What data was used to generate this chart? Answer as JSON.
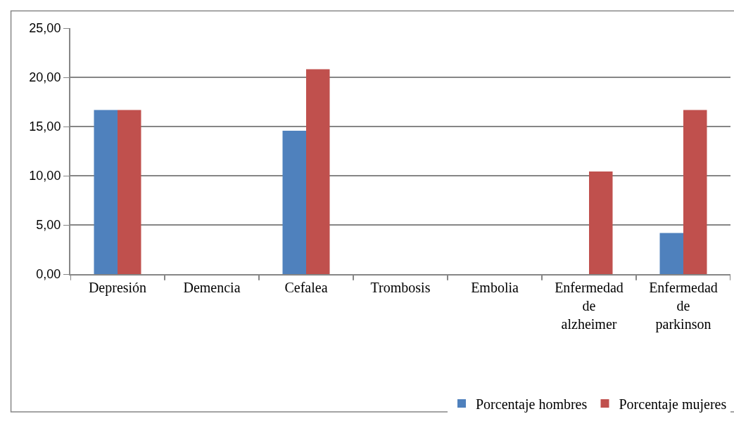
{
  "chart_data": {
    "type": "bar",
    "categories": [
      "Depresión",
      "Demencia",
      "Cefalea",
      "Trombosis",
      "Embolia",
      "Enfermedad de alzheimer",
      "Enfermedad de parkinson"
    ],
    "series": [
      {
        "name": "Porcentaje hombres",
        "color": "#4f81bd",
        "values": [
          16.67,
          0,
          14.58,
          0,
          0,
          0,
          4.17
        ]
      },
      {
        "name": "Porcentaje mujeres",
        "color": "#c0504d",
        "values": [
          16.67,
          0,
          20.83,
          0,
          0,
          10.42,
          16.67
        ]
      }
    ],
    "ylim": [
      0,
      25
    ],
    "yticks": [
      {
        "value": 0,
        "label": "0,00"
      },
      {
        "value": 5,
        "label": "5,00"
      },
      {
        "value": 10,
        "label": "10,00"
      },
      {
        "value": 15,
        "label": "15,00"
      },
      {
        "value": 20,
        "label": "20,00"
      },
      {
        "value": 25,
        "label": "25,00"
      }
    ],
    "grid": "y",
    "legend": "bottom right"
  }
}
